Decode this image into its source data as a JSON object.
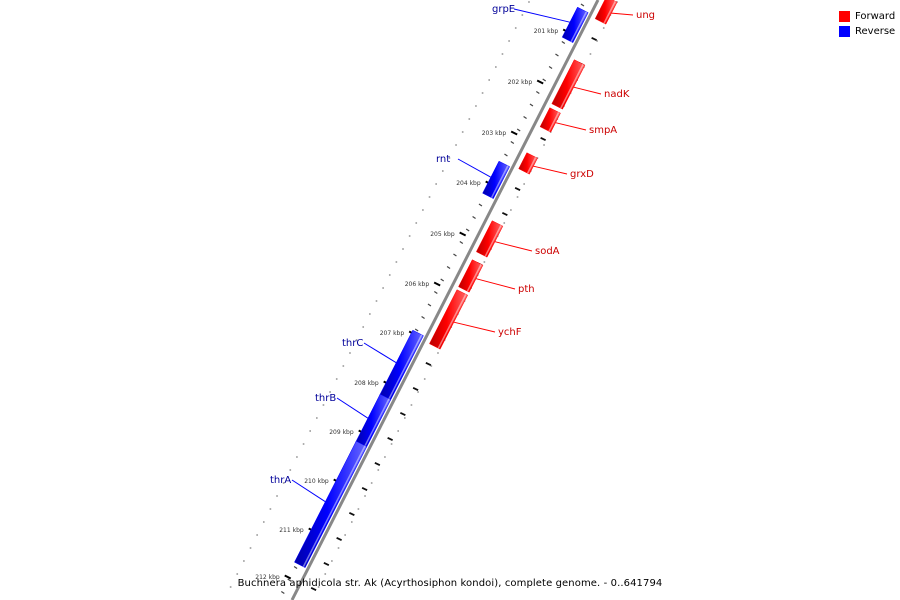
{
  "genome": {
    "caption": "Buchnera aphidicola str. Ak (Acyrthosiphon kondoi), complete genome. - 0..641794"
  },
  "legend": [
    {
      "label": "Forward",
      "color": "#ff0000"
    },
    {
      "label": "Reverse",
      "color": "#0000ff"
    }
  ],
  "colors": {
    "forward": "#ff0000",
    "reverse": "#0000ff",
    "backbone": "#888888"
  },
  "ticks": [
    "201 kbp",
    "202 kbp",
    "203 kbp",
    "204 kbp",
    "205 kbp",
    "206 kbp",
    "207 kbp",
    "208 kbp",
    "209 kbp",
    "210 kbp",
    "211 kbp",
    "212 kbp"
  ],
  "genes": [
    {
      "name": "ung",
      "strand": "forward"
    },
    {
      "name": "grpE",
      "strand": "reverse"
    },
    {
      "name": "nadK",
      "strand": "forward"
    },
    {
      "name": "smpA",
      "strand": "forward"
    },
    {
      "name": "grxD",
      "strand": "forward"
    },
    {
      "name": "rnt",
      "strand": "reverse"
    },
    {
      "name": "sodA",
      "strand": "forward"
    },
    {
      "name": "pth",
      "strand": "forward"
    },
    {
      "name": "ychF",
      "strand": "forward"
    },
    {
      "name": "thrC",
      "strand": "reverse"
    },
    {
      "name": "thrB",
      "strand": "reverse"
    },
    {
      "name": "thrA",
      "strand": "reverse"
    }
  ]
}
